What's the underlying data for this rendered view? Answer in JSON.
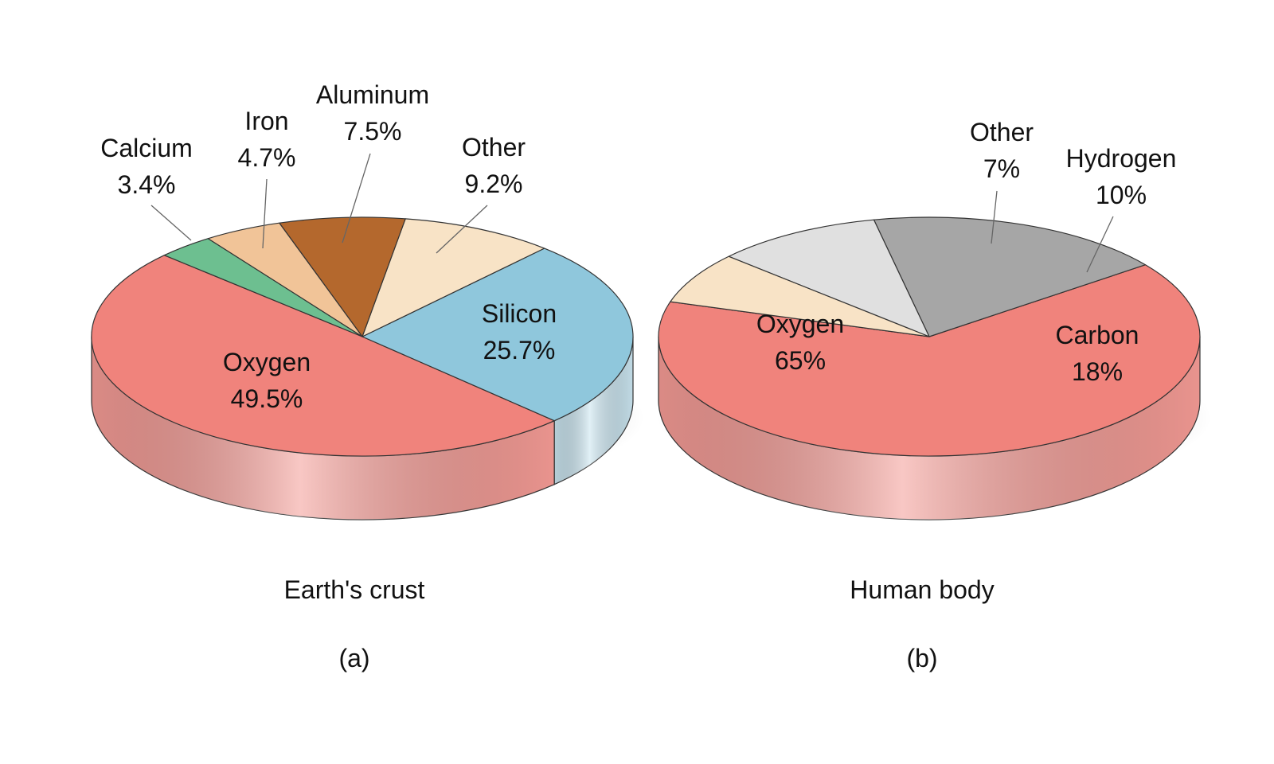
{
  "chart_data": [
    {
      "type": "pie",
      "caption": "Earth's crust",
      "panel": "(a)",
      "slices": [
        {
          "label": "Oxygen",
          "value_text": "49.5%",
          "value": 49.5,
          "color": "#f0837c",
          "side": "#f39a94"
        },
        {
          "label": "Silicon",
          "value_text": "25.7%",
          "value": 25.7,
          "color": "#8fc7dc",
          "side": "#c9e4ef"
        },
        {
          "label": "Other",
          "value_text": "9.2%",
          "value": 9.2,
          "color": "#f8e3c6",
          "side": "#f8e3c6"
        },
        {
          "label": "Aluminum",
          "value_text": "7.5%",
          "value": 7.5,
          "color": "#b4682d",
          "side": "#b4682d"
        },
        {
          "label": "Iron",
          "value_text": "4.7%",
          "value": 4.7,
          "color": "#f1c498",
          "side": "#f1c498"
        },
        {
          "label": "Calcium",
          "value_text": "3.4%",
          "value": 3.4,
          "color": "#6dbf90",
          "side": "#6dbf90"
        }
      ]
    },
    {
      "type": "pie",
      "caption": "Human body",
      "panel": "(b)",
      "slices": [
        {
          "label": "Oxygen",
          "value_text": "65%",
          "value": 65,
          "color": "#f0837c",
          "side": "#f39a94"
        },
        {
          "label": "Carbon",
          "value_text": "18%",
          "value": 18,
          "color": "#a6a6a6",
          "side": "#d4d4d4"
        },
        {
          "label": "Hydrogen",
          "value_text": "10%",
          "value": 10,
          "color": "#e0e0e0",
          "side": "#e0e0e0"
        },
        {
          "label": "Other",
          "value_text": "7%",
          "value": 7,
          "color": "#f8e3c6",
          "side": "#f8e3c6"
        }
      ]
    }
  ]
}
